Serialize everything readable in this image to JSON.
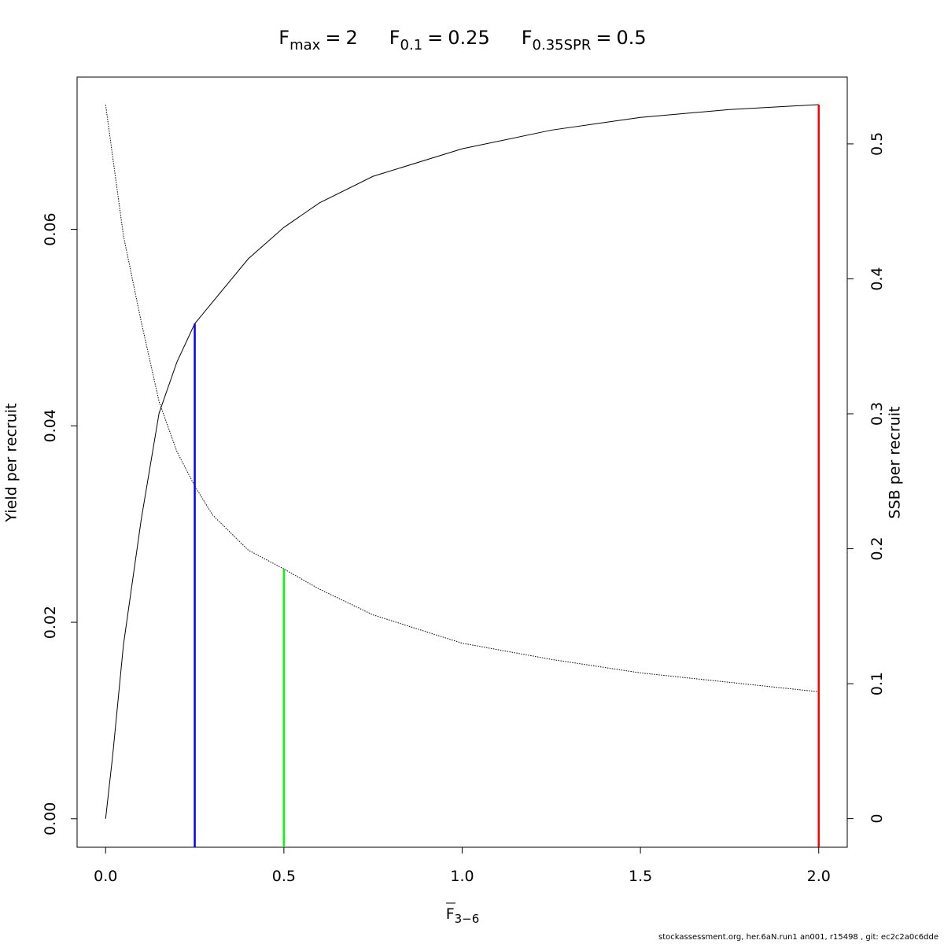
{
  "chart_data": {
    "type": "line",
    "title": [
      {
        "symbol": "F",
        "subscript": "max",
        "operator": "=",
        "value": 2
      },
      {
        "symbol": "F",
        "subscript": "0.1",
        "operator": "=",
        "value": 0.25
      },
      {
        "symbol": "F",
        "subscript": "0.35SPR",
        "operator": "=",
        "value": 0.5
      }
    ],
    "xlabel": {
      "symbol": "F",
      "subscript": "3−6"
    },
    "ylabel": "Yield per recruit",
    "y2label": "SSB per recruit",
    "x": [
      0,
      0.02,
      0.05,
      0.1,
      0.15,
      0.2,
      0.25,
      0.3,
      0.4,
      0.5,
      0.6,
      0.75,
      1.0,
      1.25,
      1.5,
      1.75,
      2.0
    ],
    "series": [
      {
        "color": "#000000",
        "linestyle": "solid",
        "values": [
          0,
          0.0065,
          0.0177,
          0.0305,
          0.0413,
          0.0465,
          0.0504,
          0.0526,
          0.057,
          0.0602,
          0.0627,
          0.0654,
          0.0682,
          0.0701,
          0.0714,
          0.0722,
          0.0727
        ]
      },
      {
        "color": "#000000",
        "linestyle": "dotted",
        "axis": "y2",
        "values": [
          0.529,
          0.49,
          0.432,
          0.368,
          0.309,
          0.272,
          0.2465,
          0.225,
          0.199,
          0.185,
          0.17,
          0.151,
          0.13,
          0.118,
          0.108,
          0.101,
          0.094
        ]
      }
    ],
    "reference_lines": [
      {
        "x": 0.25,
        "y": 0.0504,
        "color": "#0000ff"
      },
      {
        "x": 0.5,
        "y": 0.185,
        "axis": "y2",
        "color": "#00ff00"
      },
      {
        "x": 2.0,
        "y": 0.0727,
        "color": "#ff0000"
      }
    ],
    "xlim": [
      -0.08,
      2.08
    ],
    "ylim": [
      -0.0029,
      0.0755
    ],
    "y2lim": [
      -0.0212,
      0.5495
    ],
    "xticks": [
      {
        "value": 0,
        "label": "0.0"
      },
      0.5,
      {
        "value": 1,
        "label": "1.0"
      },
      1.5,
      {
        "value": 2,
        "label": "2.0"
      }
    ],
    "yticks": [
      {
        "value": 0,
        "label": "0.00"
      },
      {
        "value": 0.02,
        "label": "0.02"
      },
      {
        "value": 0.04,
        "label": "0.04"
      },
      {
        "value": 0.06,
        "label": "0.06"
      }
    ],
    "y2ticks": [
      0,
      0.1,
      0.2,
      0.3,
      0.4,
      0.5
    ],
    "footer": "stockassessment.org, her.6aN.run1  an001, r15498 , git: ec2c2a0c6dde"
  }
}
